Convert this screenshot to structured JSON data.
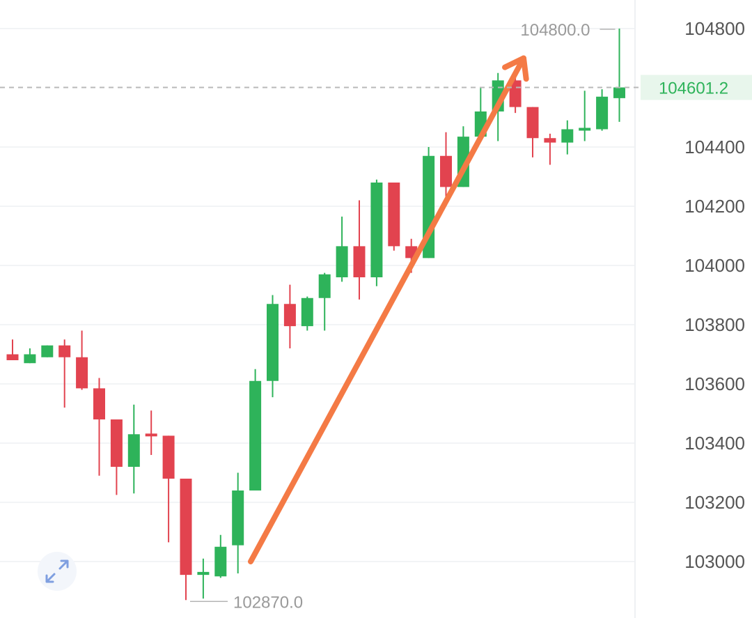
{
  "chart_data": {
    "type": "candlestick",
    "y_ticks": [
      "104800",
      "104400",
      "104200",
      "104000",
      "103800",
      "103600",
      "103400",
      "103200",
      "103000"
    ],
    "ylim": [
      102840,
      104880
    ],
    "grid": true,
    "high_annotation": "104800.0",
    "low_annotation": "102870.0",
    "last_price_label": "104601.2",
    "last_price": 104601.2,
    "high_value": 104800,
    "low_value": 102870,
    "trend_arrow": {
      "from": 103000,
      "to": 104700
    },
    "candles": [
      {
        "o": 103700,
        "h": 103750,
        "l": 103680,
        "c": 103680
      },
      {
        "o": 103670,
        "h": 103720,
        "l": 103670,
        "c": 103700
      },
      {
        "o": 103690,
        "h": 103730,
        "l": 103690,
        "c": 103730
      },
      {
        "o": 103730,
        "h": 103750,
        "l": 103520,
        "c": 103690
      },
      {
        "o": 103690,
        "h": 103780,
        "l": 103580,
        "c": 103585
      },
      {
        "o": 103585,
        "h": 103620,
        "l": 103290,
        "c": 103480
      },
      {
        "o": 103480,
        "h": 103480,
        "l": 103225,
        "c": 103320
      },
      {
        "o": 103320,
        "h": 103530,
        "l": 103230,
        "c": 103430
      },
      {
        "o": 103430,
        "h": 103510,
        "l": 103360,
        "c": 103425
      },
      {
        "o": 103425,
        "h": 103425,
        "l": 103065,
        "c": 103280
      },
      {
        "o": 103280,
        "h": 103280,
        "l": 102870,
        "c": 102955
      },
      {
        "o": 102955,
        "h": 103010,
        "l": 102875,
        "c": 102965
      },
      {
        "o": 102950,
        "h": 103090,
        "l": 102945,
        "c": 103050
      },
      {
        "o": 103055,
        "h": 103300,
        "l": 102960,
        "c": 103240
      },
      {
        "o": 103240,
        "h": 103650,
        "l": 103240,
        "c": 103610
      },
      {
        "o": 103610,
        "h": 103900,
        "l": 103555,
        "c": 103870
      },
      {
        "o": 103870,
        "h": 103935,
        "l": 103720,
        "c": 103795
      },
      {
        "o": 103795,
        "h": 103895,
        "l": 103780,
        "c": 103890
      },
      {
        "o": 103890,
        "h": 103975,
        "l": 103780,
        "c": 103970
      },
      {
        "o": 103960,
        "h": 104165,
        "l": 103945,
        "c": 104065
      },
      {
        "o": 104065,
        "h": 104220,
        "l": 103885,
        "c": 103960
      },
      {
        "o": 103960,
        "h": 104290,
        "l": 103930,
        "c": 104280
      },
      {
        "o": 104280,
        "h": 104280,
        "l": 104050,
        "c": 104065
      },
      {
        "o": 104065,
        "h": 104090,
        "l": 103975,
        "c": 104025
      },
      {
        "o": 104025,
        "h": 104400,
        "l": 104025,
        "c": 104370
      },
      {
        "o": 104370,
        "h": 104450,
        "l": 104220,
        "c": 104265
      },
      {
        "o": 104265,
        "h": 104470,
        "l": 104265,
        "c": 104435
      },
      {
        "o": 104435,
        "h": 104600,
        "l": 104435,
        "c": 104520
      },
      {
        "o": 104520,
        "h": 104650,
        "l": 104420,
        "c": 104625
      },
      {
        "o": 104625,
        "h": 104650,
        "l": 104515,
        "c": 104535
      },
      {
        "o": 104535,
        "h": 104535,
        "l": 104365,
        "c": 104430
      },
      {
        "o": 104430,
        "h": 104445,
        "l": 104340,
        "c": 104415
      },
      {
        "o": 104415,
        "h": 104490,
        "l": 104375,
        "c": 104460
      },
      {
        "o": 104460,
        "h": 104590,
        "l": 104420,
        "c": 104460
      },
      {
        "o": 104460,
        "h": 104595,
        "l": 104455,
        "c": 104570
      },
      {
        "o": 104565,
        "h": 104800,
        "l": 104485,
        "c": 104601.2
      }
    ]
  },
  "colors": {
    "up": "#2eb35a",
    "down": "#e2434f",
    "arrow": "#f47a45",
    "grid": "#eef0f3",
    "last_price_line": "#b9b9b9",
    "last_price_bg": "#e8f6ec"
  },
  "icons": {
    "expand": "expand-arrows-icon"
  }
}
